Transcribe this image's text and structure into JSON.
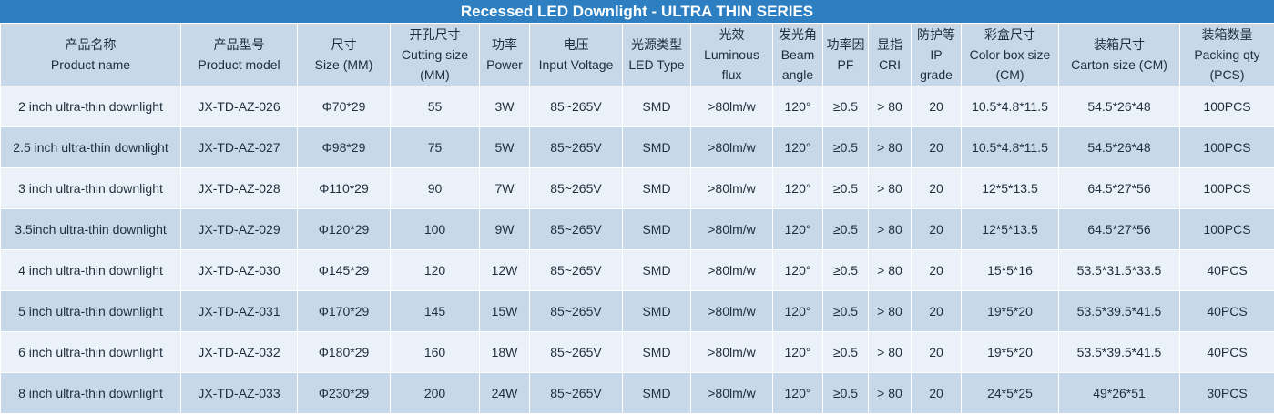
{
  "title": "Recessed LED Downlight - ULTRA THIN SERIES",
  "columns": [
    {
      "cn": "产品名称",
      "en": "Product name"
    },
    {
      "cn": "产品型号",
      "en": "Product model"
    },
    {
      "cn": "尺寸",
      "en": "Size (MM)"
    },
    {
      "cn": "开孔尺寸",
      "en": "Cutting size (MM)"
    },
    {
      "cn": "功率",
      "en": "Power"
    },
    {
      "cn": "电压",
      "en": "Input Voltage"
    },
    {
      "cn": "光源类型",
      "en": "LED Type"
    },
    {
      "cn": "光效",
      "en": "Luminous flux"
    },
    {
      "cn": "发光角",
      "en": "Beam angle"
    },
    {
      "cn": "功率因",
      "en": "PF"
    },
    {
      "cn": "显指",
      "en": "CRI"
    },
    {
      "cn": "防护等",
      "en": "IP grade"
    },
    {
      "cn": "彩盒尺寸",
      "en": "Color box size (CM)"
    },
    {
      "cn": "装箱尺寸",
      "en": "Carton size (CM)"
    },
    {
      "cn": "装箱数量",
      "en": "Packing qty (PCS)"
    }
  ],
  "rows": [
    [
      "2 inch ultra-thin downlight",
      "JX-TD-AZ-026",
      "Φ70*29",
      "55",
      "3W",
      "85~265V",
      "SMD",
      ">80lm/w",
      "120°",
      "≥0.5",
      "> 80",
      "20",
      "10.5*4.8*11.5",
      "54.5*26*48",
      "100PCS"
    ],
    [
      "2.5 inch ultra-thin downlight",
      "JX-TD-AZ-027",
      "Φ98*29",
      "75",
      "5W",
      "85~265V",
      "SMD",
      ">80lm/w",
      "120°",
      "≥0.5",
      "> 80",
      "20",
      "10.5*4.8*11.5",
      "54.5*26*48",
      "100PCS"
    ],
    [
      "3 inch ultra-thin downlight",
      "JX-TD-AZ-028",
      "Φ110*29",
      "90",
      "7W",
      "85~265V",
      "SMD",
      ">80lm/w",
      "120°",
      "≥0.5",
      "> 80",
      "20",
      "12*5*13.5",
      "64.5*27*56",
      "100PCS"
    ],
    [
      "3.5inch ultra-thin downlight",
      "JX-TD-AZ-029",
      "Φ120*29",
      "100",
      "9W",
      "85~265V",
      "SMD",
      ">80lm/w",
      "120°",
      "≥0.5",
      "> 80",
      "20",
      "12*5*13.5",
      "64.5*27*56",
      "100PCS"
    ],
    [
      "4 inch ultra-thin downlight",
      "JX-TD-AZ-030",
      "Φ145*29",
      "120",
      "12W",
      "85~265V",
      "SMD",
      ">80lm/w",
      "120°",
      "≥0.5",
      "> 80",
      "20",
      "15*5*16",
      "53.5*31.5*33.5",
      "40PCS"
    ],
    [
      "5 inch ultra-thin downlight",
      "JX-TD-AZ-031",
      "Φ170*29",
      "145",
      "15W",
      "85~265V",
      "SMD",
      ">80lm/w",
      "120°",
      "≥0.5",
      "> 80",
      "20",
      "19*5*20",
      "53.5*39.5*41.5",
      "40PCS"
    ],
    [
      "6 inch ultra-thin downlight",
      "JX-TD-AZ-032",
      "Φ180*29",
      "160",
      "18W",
      "85~265V",
      "SMD",
      ">80lm/w",
      "120°",
      "≥0.5",
      "> 80",
      "20",
      "19*5*20",
      "53.5*39.5*41.5",
      "40PCS"
    ],
    [
      "8 inch ultra-thin downlight",
      "JX-TD-AZ-033",
      "Φ230*29",
      "200",
      "24W",
      "85~265V",
      "SMD",
      ">80lm/w",
      "120°",
      "≥0.5",
      "> 80",
      "20",
      "24*5*25",
      "49*26*51",
      "30PCS"
    ]
  ],
  "colors": {
    "title_bg": "#2d7fc1",
    "row_light": "#eaf1f9",
    "row_dark": "#c7d8ea",
    "text": "#1f2e3a"
  }
}
